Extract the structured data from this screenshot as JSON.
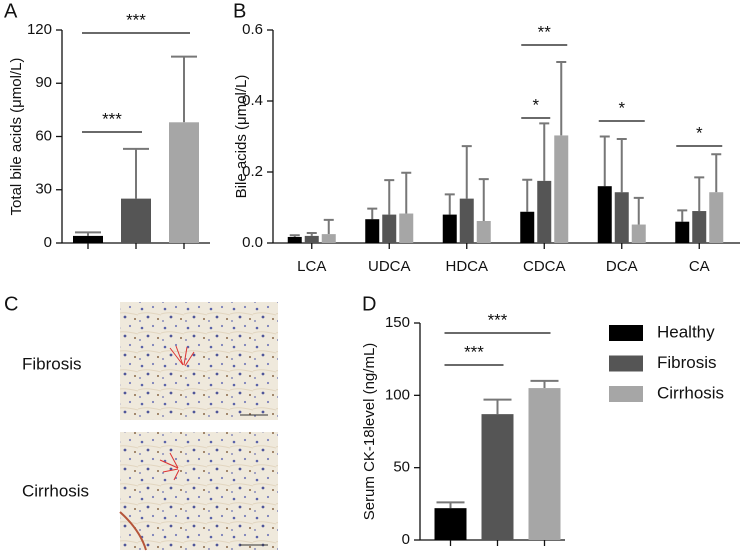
{
  "chart_data": [
    {
      "type": "bar",
      "panel": "A",
      "ylabel": "Total bile acids (μmol/L)",
      "categories": [
        null,
        null,
        null
      ],
      "values": [
        4,
        25,
        68
      ],
      "errors": [
        2,
        28,
        37
      ],
      "colors": [
        "#000000",
        "#555555",
        "#a6a6a6"
      ],
      "ylim": [
        0,
        120
      ],
      "yticks": [
        0,
        30,
        60,
        90,
        120
      ],
      "annotations": [
        "***",
        "***"
      ]
    },
    {
      "type": "bar",
      "panel": "B",
      "ylabel": "Bile acids (μmol/L)",
      "categories": [
        "LCA",
        "UDCA",
        "HDCA",
        "CDCA",
        "DCA",
        "CA"
      ],
      "series": [
        {
          "color": "#000000",
          "values": [
            0.017,
            0.067,
            0.08,
            0.088,
            0.16,
            0.06
          ],
          "errors": [
            0.005,
            0.03,
            0.057,
            0.09,
            0.14,
            0.032
          ]
        },
        {
          "color": "#555555",
          "values": [
            0.02,
            0.08,
            0.125,
            0.175,
            0.143,
            0.09
          ],
          "errors": [
            0.008,
            0.097,
            0.148,
            0.162,
            0.15,
            0.095
          ]
        },
        {
          "color": "#a6a6a6",
          "values": [
            0.025,
            0.083,
            0.062,
            0.303,
            0.052,
            0.143
          ],
          "errors": [
            0.04,
            0.115,
            0.118,
            0.207,
            0.075,
            0.107
          ]
        }
      ],
      "ylim": [
        0,
        0.6
      ],
      "yticks": [
        {
          "value": 0,
          "label": "0.0"
        },
        0.2,
        0.4,
        0.6
      ],
      "annotations": [
        "**",
        "*",
        "*",
        "*"
      ]
    },
    {
      "type": "bar",
      "panel": "D",
      "ylabel": "Serum CK-18level (ng/mL)",
      "categories": [
        null,
        null,
        null
      ],
      "values": [
        22,
        87,
        105
      ],
      "errors": [
        4,
        10,
        5
      ],
      "colors": [
        "#000000",
        "#555555",
        "#a6a6a6"
      ],
      "ylim": [
        0,
        150
      ],
      "yticks": [
        0,
        50,
        100,
        150
      ],
      "legend": [
        "Healthy",
        "Fibrosis",
        "Cirrhosis"
      ],
      "legend_position": "right",
      "annotations": [
        "***",
        "***"
      ]
    }
  ],
  "panel_c": {
    "panel": "C",
    "rows": [
      "Fibrosis",
      "Cirrhosis"
    ]
  }
}
